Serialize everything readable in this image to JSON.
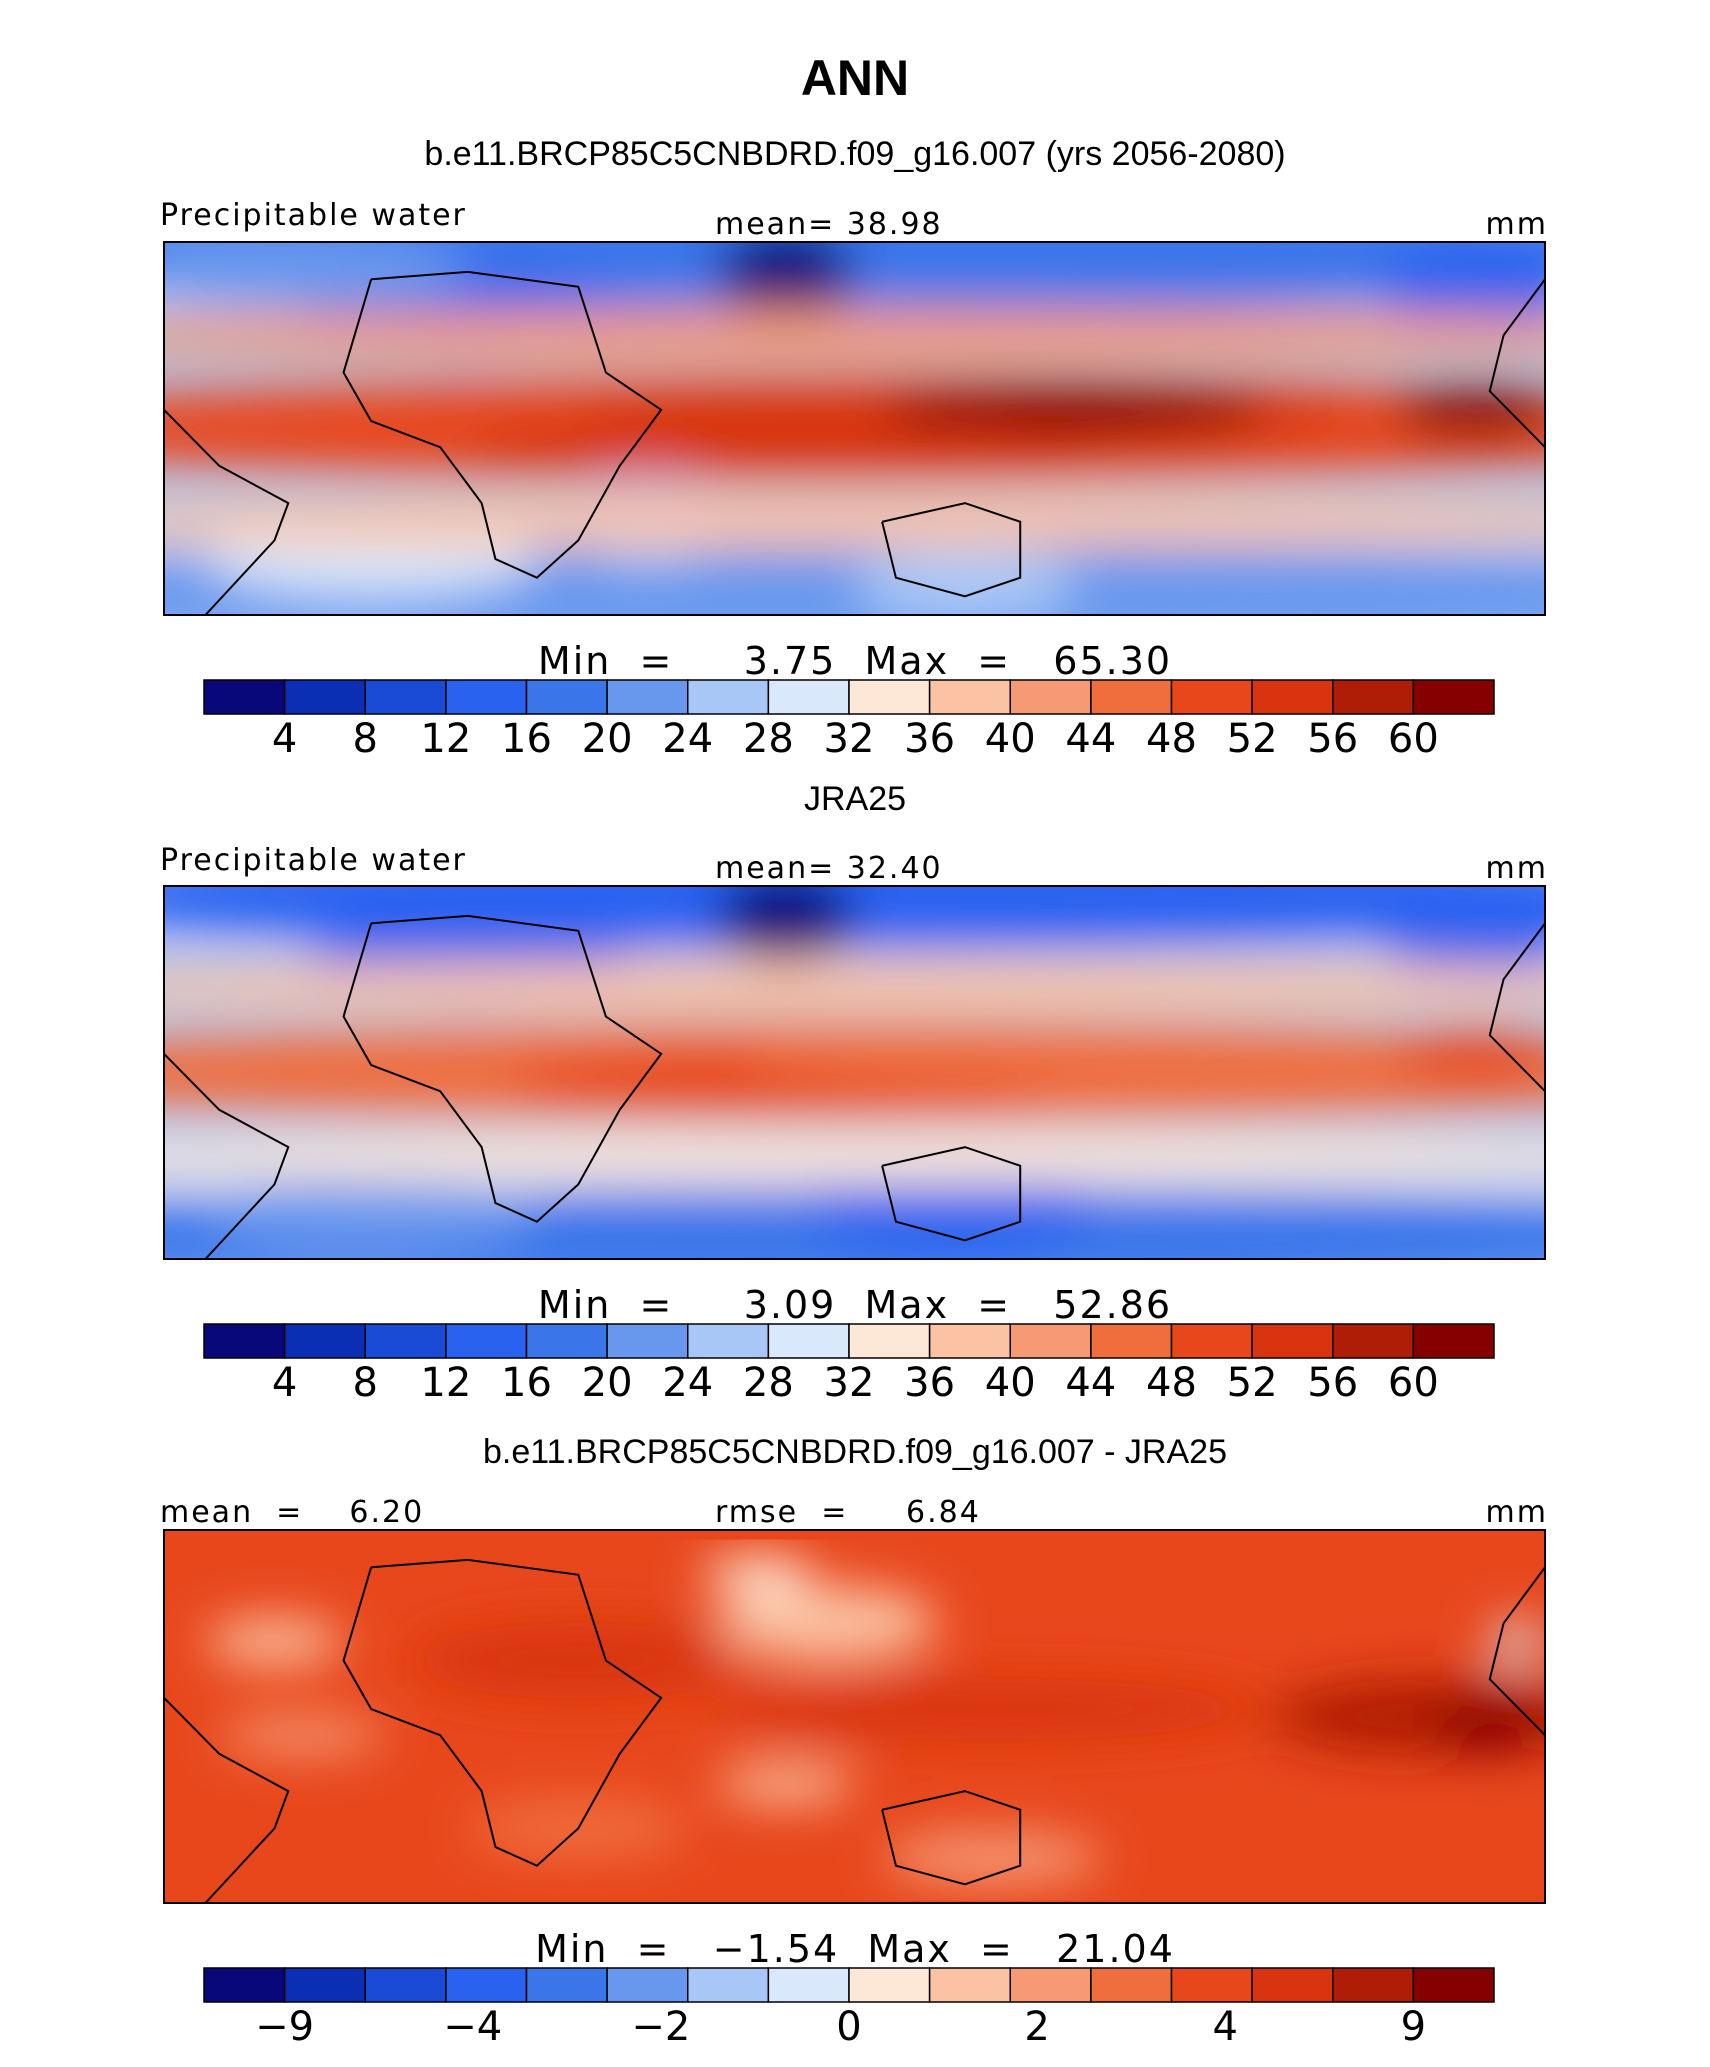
{
  "page_title": "ANN",
  "chart_data": [
    {
      "type": "heatmap",
      "title": "b.e11.BRCP85C5CNBDRD.f09_g16.007 (yrs 2056-2080)",
      "left_label": "Precipitable water",
      "center_label": "mean=   38.98",
      "units": "mm",
      "min_max_label": "Min  =     3.75  Max  =   65.30",
      "field_min": 3.75,
      "field_max": 65.3,
      "field_mean": 38.98,
      "colorbar_ticks": [
        "4",
        "8",
        "12",
        "16",
        "20",
        "24",
        "28",
        "32",
        "36",
        "40",
        "44",
        "48",
        "52",
        "56",
        "60"
      ]
    },
    {
      "type": "heatmap",
      "title": "JRA25",
      "left_label": "Precipitable water",
      "center_label": "mean=   32.40",
      "units": "mm",
      "min_max_label": "Min  =     3.09  Max  =   52.86",
      "field_min": 3.09,
      "field_max": 52.86,
      "field_mean": 32.4,
      "colorbar_ticks": [
        "4",
        "8",
        "12",
        "16",
        "20",
        "24",
        "28",
        "32",
        "36",
        "40",
        "44",
        "48",
        "52",
        "56",
        "60"
      ]
    },
    {
      "type": "heatmap",
      "title": "b.e11.BRCP85C5CNBDRD.f09_g16.007 - JRA25",
      "left_label": "mean  =    6.20",
      "center_label": "rmse  =     6.84",
      "units": "mm",
      "min_max_label": "Min  =   −1.54  Max  =   21.04",
      "field_min": -1.54,
      "field_max": 21.04,
      "field_mean": 6.2,
      "colorbar_ticks": [
        "−9",
        "",
        "−4",
        "",
        "−2",
        "",
        "0",
        "",
        "2",
        "",
        "4",
        "",
        "9"
      ]
    }
  ],
  "colors": {
    "scale": [
      "#08087a",
      "#0a2fb4",
      "#1a4bd6",
      "#2a62f0",
      "#3a76ea",
      "#6898ee",
      "#a9c7f6",
      "#d9e8fa",
      "#fde8d8",
      "#fbc3a4",
      "#f59a74",
      "#f06d3e",
      "#e8471c",
      "#d83410",
      "#b01d06",
      "#860000"
    ]
  }
}
